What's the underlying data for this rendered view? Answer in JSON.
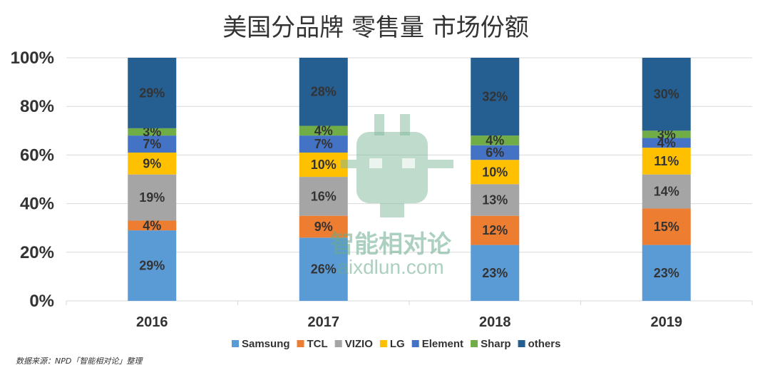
{
  "chart_data": {
    "type": "bar",
    "stacked": true,
    "title": "美国分品牌 零售量 市场份额",
    "categories": [
      "2016",
      "2017",
      "2018",
      "2019"
    ],
    "y_ticks": [
      "0%",
      "20%",
      "40%",
      "60%",
      "80%",
      "100%"
    ],
    "ylim": [
      0,
      100
    ],
    "grid": true,
    "legend_position": "bottom",
    "series": [
      {
        "name": "Samsung",
        "color": "#5b9bd5",
        "values": [
          29,
          26,
          23,
          23
        ]
      },
      {
        "name": "TCL",
        "color": "#ed7d31",
        "values": [
          4,
          9,
          12,
          15
        ]
      },
      {
        "name": "VIZIO",
        "color": "#a5a5a5",
        "values": [
          19,
          16,
          13,
          14
        ]
      },
      {
        "name": "LG",
        "color": "#ffc000",
        "values": [
          9,
          10,
          10,
          11
        ]
      },
      {
        "name": "Element",
        "color": "#4472c4",
        "values": [
          7,
          7,
          6,
          4
        ]
      },
      {
        "name": "Sharp",
        "color": "#70ad47",
        "values": [
          3,
          4,
          4,
          3
        ]
      },
      {
        "name": "others",
        "color": "#255e91",
        "values": [
          29,
          28,
          32,
          30
        ]
      }
    ]
  },
  "source": "数据来源：NPD「智能相对论」整理",
  "watermark": {
    "brand": "智能相对论",
    "url": "aixdlun.com"
  }
}
